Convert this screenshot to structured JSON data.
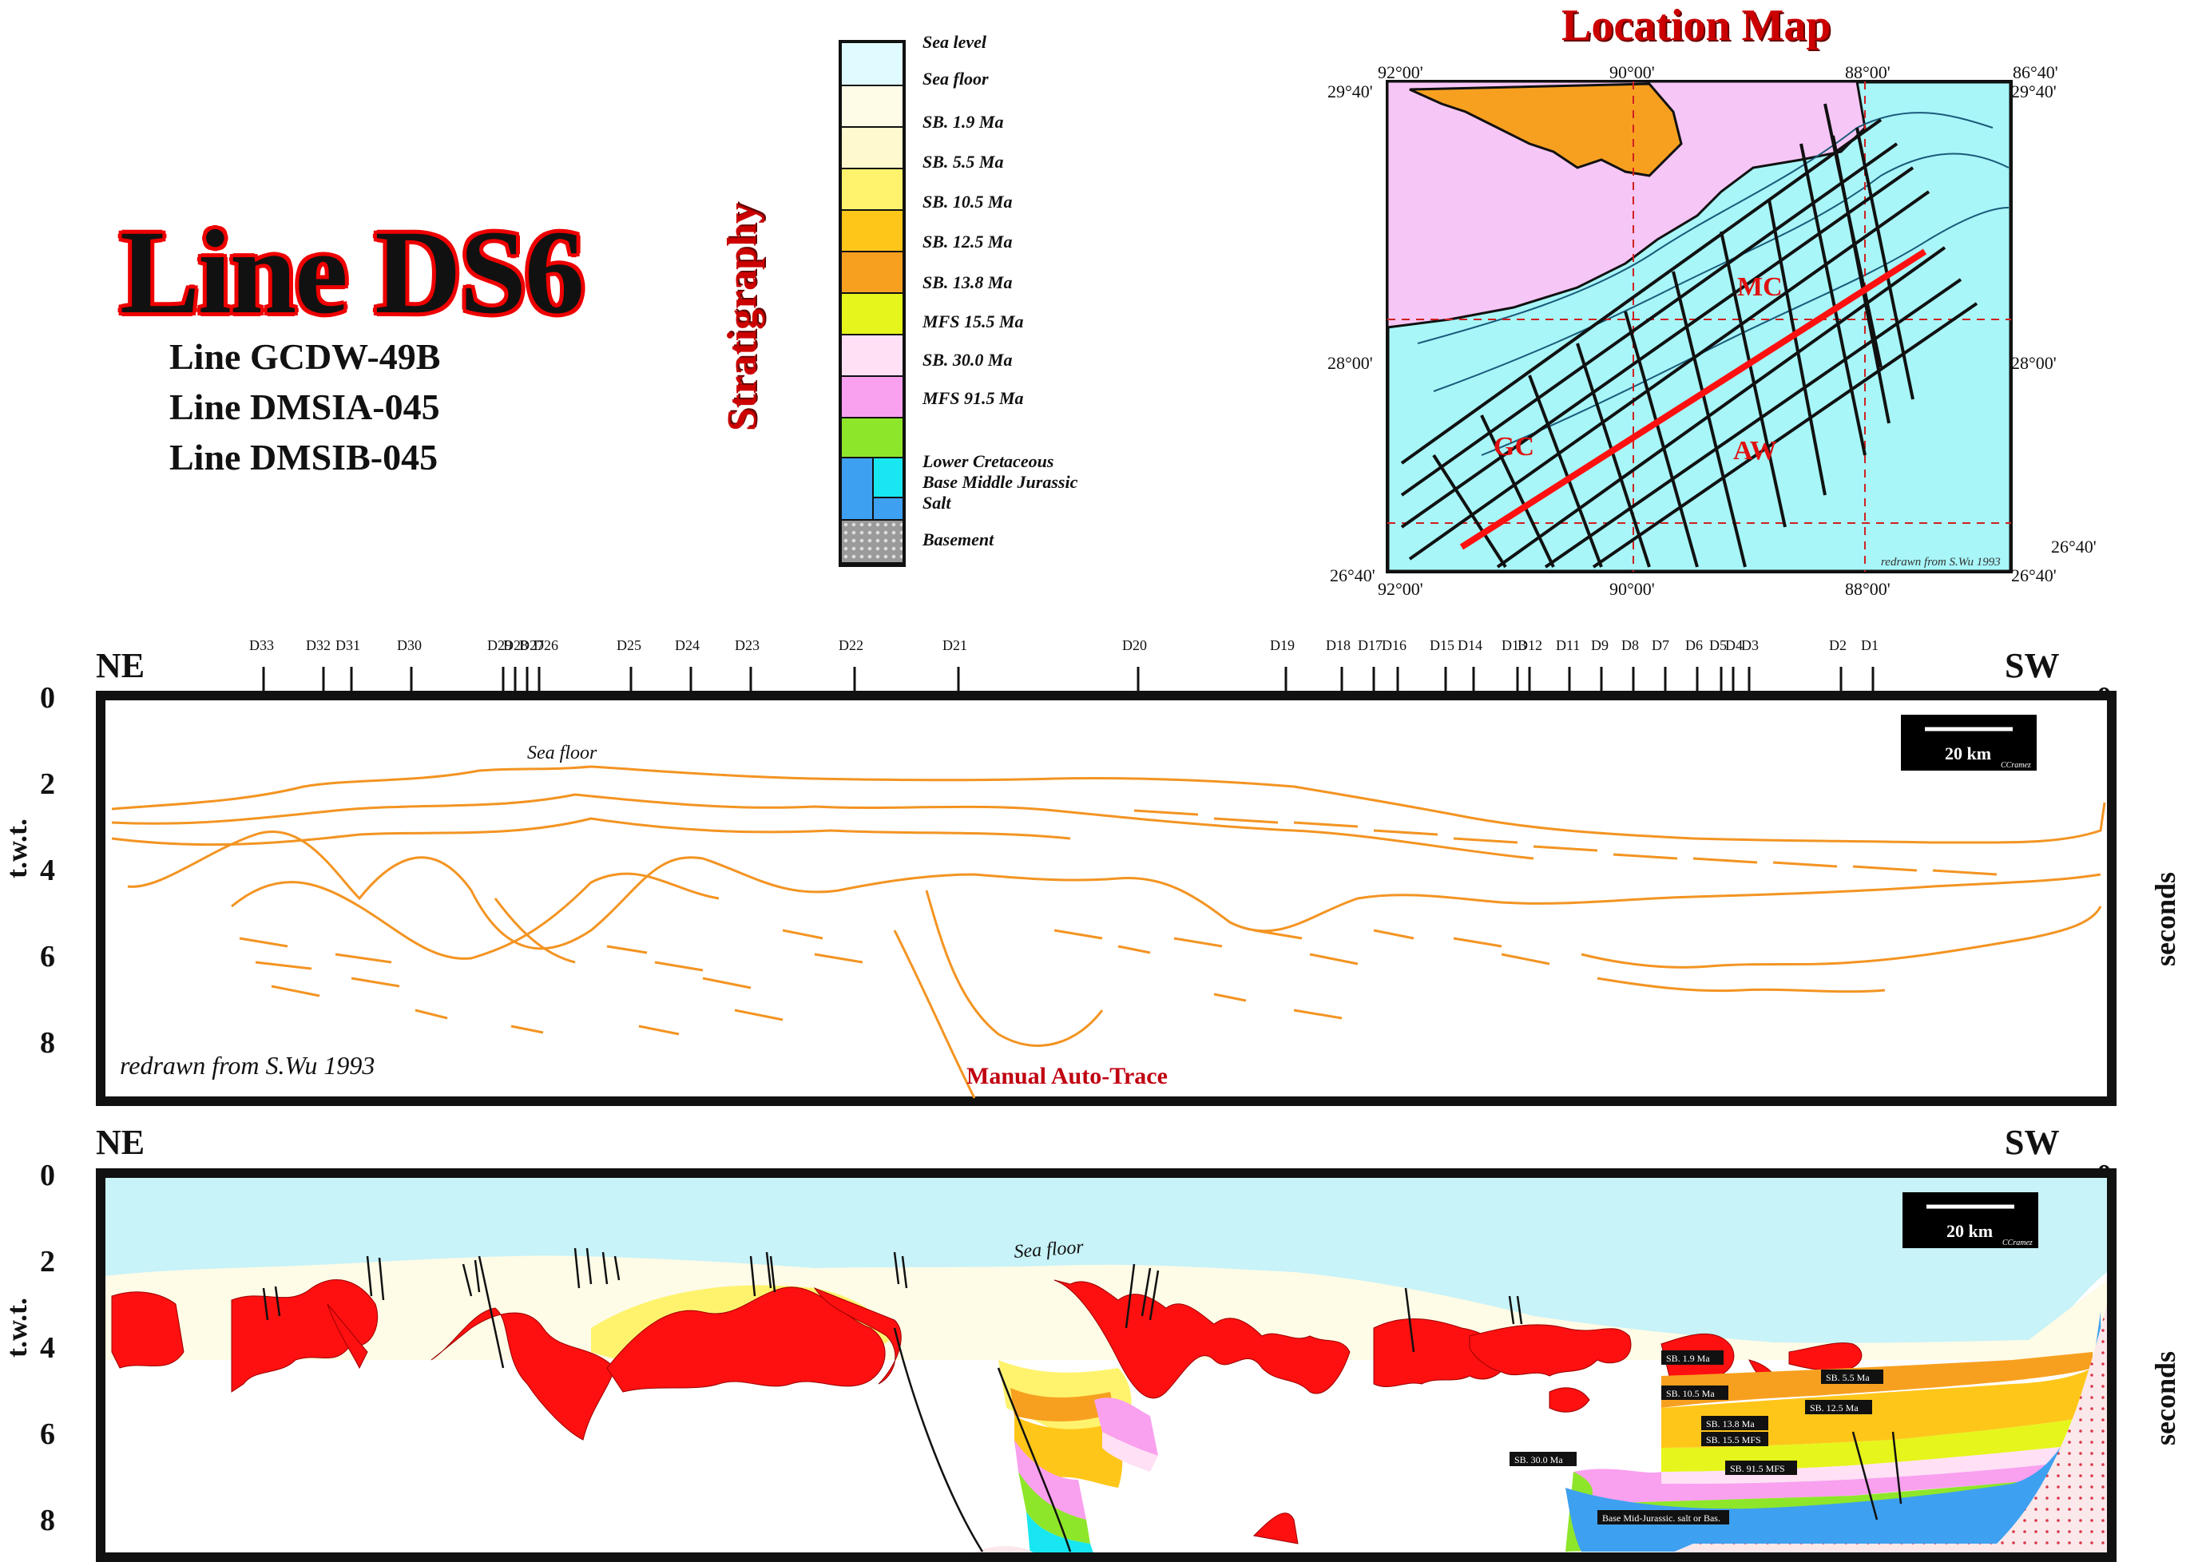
{
  "title": {
    "main": "Line DS6",
    "sub": [
      "Line GCDW-49B",
      "Line DMSIA-045",
      "Line DMSIB-045"
    ]
  },
  "stratigraphy": {
    "title": "Stratigraphy",
    "items": [
      {
        "label": "Sea level",
        "color": "#e0fbff"
      },
      {
        "label": "Sea floor",
        "color": "#fefbe6"
      },
      {
        "label": "SB. 1.9 Ma",
        "color": "#fffacd"
      },
      {
        "label": "SB. 5.5 Ma",
        "color": "#fff36e"
      },
      {
        "label": "SB. 10.5 Ma",
        "color": "#ffc61a"
      },
      {
        "label": "SB. 12.5 Ma",
        "color": "#f7a020"
      },
      {
        "label": "SB. 13.8 Ma",
        "color": "#e6f51c"
      },
      {
        "label": "MFS 15.5 Ma",
        "color": "#ffe0f5"
      },
      {
        "label": "SB. 30.0 Ma",
        "color": "#f9a0ef"
      },
      {
        "label": "MFS 91.5 Ma",
        "color": "#8ee62a"
      },
      {
        "label": "Lower Cretaceous",
        "color": "#3ea0f0"
      },
      {
        "label": "Base Middle Jurassic",
        "color": "#18e6f0"
      },
      {
        "label": "Salt",
        "color": "#ff1010"
      },
      {
        "label": "Basement",
        "color": "#9a9a9a"
      }
    ]
  },
  "location_map": {
    "title": "Location Map",
    "coords": {
      "top_left_lon": "92°00'",
      "top_mid_lon": "90°00'",
      "top_right_lon": "88°00'",
      "top_far_lon": "86°40'",
      "lat_top": "29°40'",
      "lat_mid": "28°00'",
      "lat_bottom": "26°40'",
      "bottom_left_lon": "92°00'",
      "bottom_mid_lon": "90°00'",
      "bottom_right_lon": "88°00'"
    },
    "regions": [
      "MC",
      "GC",
      "AW"
    ],
    "credit": "redrawn from S.Wu 1993"
  },
  "section_top": {
    "left_dir": "NE",
    "right_dir": "SW",
    "left_axis": "t.w.t.",
    "right_axis": "seconds",
    "ticks": [
      "0",
      "2",
      "4",
      "6",
      "8"
    ],
    "sea_floor_label": "Sea floor",
    "credit": "redrawn from S.Wu 1993",
    "center_label": "Manual Auto-Trace",
    "scale": "20 km",
    "scale_credit": "CCramez",
    "wells": [
      "D33",
      "D32",
      "D31",
      "D30",
      "D29",
      "D28",
      "D27",
      "D26",
      "D25",
      "D24",
      "D23",
      "D22",
      "D21",
      "D20",
      "D19",
      "D18",
      "D17",
      "D16",
      "D15",
      "D14",
      "D13",
      "D12",
      "D11",
      "D9",
      "D8",
      "D7",
      "D6",
      "D5",
      "D4",
      "D3",
      "D2",
      "D1"
    ]
  },
  "section_bottom": {
    "left_dir": "NE",
    "right_dir": "SW",
    "left_axis": "t.w.t.",
    "right_axis": "seconds",
    "ticks": [
      "0",
      "2",
      "4",
      "6",
      "8"
    ],
    "sea_floor_label": "Sea floor",
    "scale": "20 km",
    "scale_credit": "CCramez",
    "horizon_labels": [
      "SB. 1.9 Ma",
      "SB. 5.5 Ma",
      "SB. 10.5 Ma",
      "SB. 12.5 Ma",
      "SB. 13.8 Ma",
      "SB. 15.5 MFS",
      "SB. 30.0 Ma",
      "SB. 91.5 MFS",
      "Base Mid-Jurassic. salt or Bas."
    ]
  }
}
